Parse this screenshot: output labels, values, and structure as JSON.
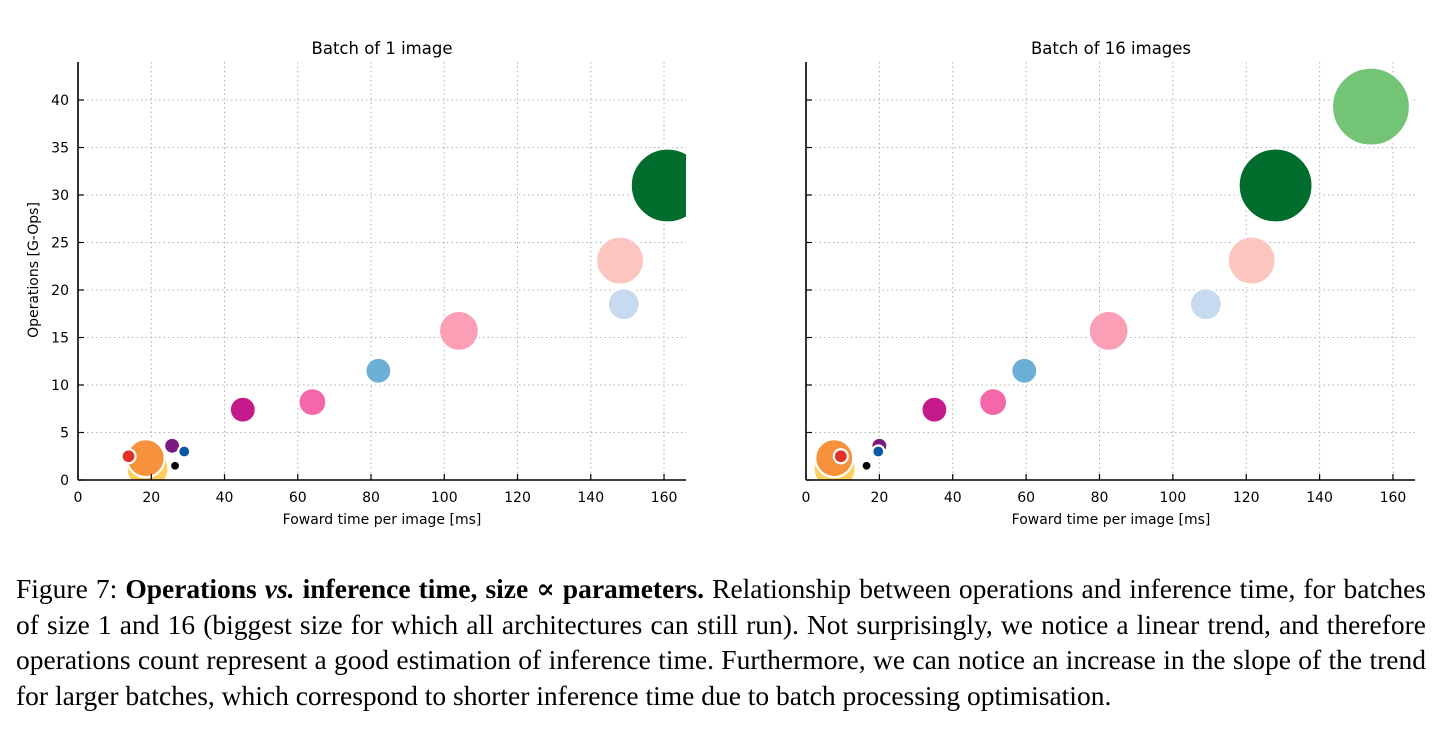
{
  "chart_data": [
    {
      "type": "scatter",
      "title": "Batch of 1 image",
      "xlabel": "Foward time per image [ms]",
      "ylabel": "Operations [G-Ops]",
      "xlim": [
        0,
        166
      ],
      "ylim": [
        0,
        44
      ],
      "xticks": [
        0,
        20,
        40,
        60,
        80,
        100,
        120,
        140,
        160
      ],
      "yticks": [
        0,
        5,
        10,
        15,
        20,
        25,
        30,
        35,
        40
      ],
      "grid": true,
      "size_encodes": "parameters",
      "points": [
        {
          "x": 19,
          "y": 1.2,
          "size": 21,
          "color": "#fecf5b"
        },
        {
          "x": 18.5,
          "y": 2.3,
          "size": 19,
          "color": "#f8913b"
        },
        {
          "x": 13.8,
          "y": 2.5,
          "size": 7,
          "color": "#e13026"
        },
        {
          "x": 25.7,
          "y": 3.6,
          "size": 8,
          "color": "#7b1980"
        },
        {
          "x": 29,
          "y": 3.0,
          "size": 6,
          "color": "#0b57a6"
        },
        {
          "x": 26.5,
          "y": 1.5,
          "size": 5,
          "color": "#000000"
        },
        {
          "x": 45,
          "y": 7.4,
          "size": 13,
          "color": "#c51b8a"
        },
        {
          "x": 64,
          "y": 8.2,
          "size": 14,
          "color": "#f667a9"
        },
        {
          "x": 82,
          "y": 11.5,
          "size": 13,
          "color": "#6baed6"
        },
        {
          "x": 104,
          "y": 15.7,
          "size": 20,
          "color": "#fa9fb5"
        },
        {
          "x": 149,
          "y": 18.5,
          "size": 16,
          "color": "#c6dbef"
        },
        {
          "x": 148,
          "y": 23.1,
          "size": 24,
          "color": "#fcc5c0"
        },
        {
          "x": 161,
          "y": 31,
          "size": 37,
          "color": "#006d2c"
        }
      ]
    },
    {
      "type": "scatter",
      "title": "Batch of 16 images",
      "xlabel": "Foward time per image [ms]",
      "ylabel": "",
      "xlim": [
        0,
        166
      ],
      "ylim": [
        0,
        44
      ],
      "xticks": [
        0,
        20,
        40,
        60,
        80,
        100,
        120,
        140,
        160
      ],
      "yticks": [
        0,
        5,
        10,
        15,
        20,
        25,
        30,
        35,
        40
      ],
      "grid": true,
      "size_encodes": "parameters",
      "points": [
        {
          "x": 7.8,
          "y": 1.2,
          "size": 21,
          "color": "#fecf5b"
        },
        {
          "x": 7.7,
          "y": 2.3,
          "size": 19,
          "color": "#f8913b"
        },
        {
          "x": 9.5,
          "y": 2.5,
          "size": 7,
          "color": "#e13026"
        },
        {
          "x": 20,
          "y": 3.6,
          "size": 8,
          "color": "#7b1980"
        },
        {
          "x": 19.7,
          "y": 3.0,
          "size": 6,
          "color": "#0b57a6"
        },
        {
          "x": 16.5,
          "y": 1.5,
          "size": 5,
          "color": "#000000"
        },
        {
          "x": 35,
          "y": 7.4,
          "size": 13,
          "color": "#c51b8a"
        },
        {
          "x": 51,
          "y": 8.2,
          "size": 14,
          "color": "#f667a9"
        },
        {
          "x": 59.5,
          "y": 11.5,
          "size": 13,
          "color": "#6baed6"
        },
        {
          "x": 82.5,
          "y": 15.7,
          "size": 20,
          "color": "#fa9fb5"
        },
        {
          "x": 109,
          "y": 18.5,
          "size": 16,
          "color": "#c6dbef"
        },
        {
          "x": 121.5,
          "y": 23.1,
          "size": 24,
          "color": "#fcc5c0"
        },
        {
          "x": 128,
          "y": 31,
          "size": 37,
          "color": "#006d2c"
        },
        {
          "x": 154,
          "y": 39.3,
          "size": 39,
          "color": "#74c476"
        }
      ]
    }
  ],
  "caption": {
    "label": "Figure 7: ",
    "bold_1": "Operations ",
    "bold_italic": "vs.",
    "bold_2": " inference time, size ∝ parameters.",
    "text": " Relationship between operations and inference time, for batches of size 1 and 16 (biggest size for which all architectures can still run). Not surprisingly, we notice a linear trend, and therefore operations count represent a good estimation of inference time. Furthermore, we can notice an increase in the slope of the trend for larger batches, which correspond to shorter inference time due to batch processing optimisation."
  }
}
